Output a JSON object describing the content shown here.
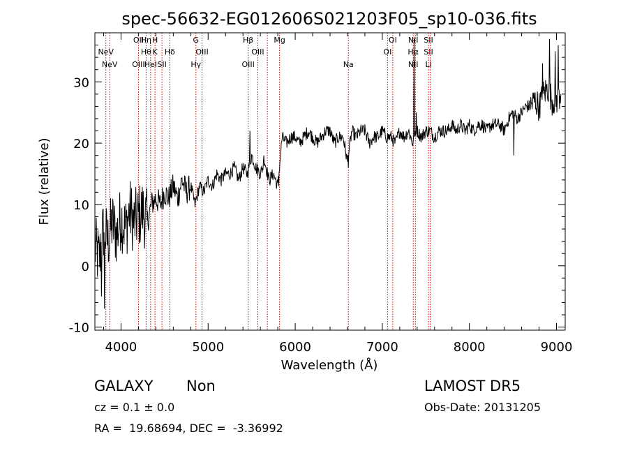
{
  "chart_data": {
    "type": "line",
    "title": "spec-56632-EG012606S021203F05_sp10-036.fits",
    "xlabel": "Wavelength (Å)",
    "ylabel": "Flux (relative)",
    "xlim": [
      3700,
      9100
    ],
    "ylim": [
      -10.5,
      38
    ],
    "x_ticks": [
      4000,
      5000,
      6000,
      7000,
      8000,
      9000
    ],
    "y_ticks": [
      -10,
      0,
      10,
      20,
      30
    ],
    "grid": false,
    "line_color": "#000000",
    "marker_color": "#cc0000",
    "series": [
      {
        "x": [
          3700,
          3750,
          3800,
          3850,
          3900,
          3950,
          4000,
          4050,
          4100,
          4150,
          4200,
          4250,
          4300,
          4350,
          4400,
          4450,
          4500,
          4550,
          4600,
          4650,
          4700,
          4750,
          4800,
          4850,
          4900,
          4950,
          5000,
          5050,
          5100,
          5150,
          5200,
          5250,
          5300,
          5350,
          5400,
          5450,
          5500,
          5550,
          5600,
          5650,
          5700,
          5750,
          5800,
          5850,
          5900,
          5950,
          6000,
          6050,
          6100,
          6150,
          6200,
          6250,
          6300,
          6350,
          6400,
          6450,
          6500,
          6550,
          6600,
          6650,
          6700,
          6750,
          6800,
          6850,
          6900,
          6950,
          7000,
          7050,
          7100,
          7150,
          7200,
          7250,
          7300,
          7350,
          7400,
          7450,
          7500,
          7550,
          7600,
          7650,
          7700,
          7750,
          7800,
          7850,
          7900,
          7950,
          8000,
          8050,
          8100,
          8150,
          8200,
          8250,
          8300,
          8350,
          8400,
          8450,
          8500,
          8550,
          8600,
          8650,
          8700,
          8750,
          8800,
          8850,
          8900,
          8950,
          9000,
          9050
        ],
        "y": [
          3,
          1,
          6,
          4,
          7,
          5,
          8,
          6,
          9,
          7,
          8,
          9,
          7,
          10,
          11,
          10,
          12,
          11,
          13,
          11,
          14,
          12,
          13,
          10,
          13,
          12,
          14,
          13,
          15,
          14,
          15,
          15,
          16,
          14,
          16,
          15,
          18,
          16,
          15,
          17,
          14,
          15,
          13,
          21,
          20,
          21,
          21,
          20,
          21,
          22,
          21,
          20,
          21,
          22,
          22,
          20,
          21,
          21,
          17,
          22,
          21,
          22,
          22,
          20,
          21,
          21,
          22,
          21,
          21,
          20,
          22,
          21,
          22,
          20,
          22,
          21,
          22,
          22,
          21,
          22,
          22,
          22,
          23,
          22,
          23,
          22,
          23,
          22,
          23,
          23,
          22,
          23,
          23,
          23,
          22,
          24,
          25,
          24,
          25,
          26,
          26,
          27,
          26,
          28,
          29,
          27,
          27,
          28
        ]
      }
    ],
    "spikes": [
      {
        "x": 3775,
        "y": -5
      },
      {
        "x": 3810,
        "y": -7
      },
      {
        "x": 5480,
        "y": 22
      },
      {
        "x": 5640,
        "y": 18
      },
      {
        "x": 5810,
        "y": 13
      },
      {
        "x": 6610,
        "y": 16
      },
      {
        "x": 7365,
        "y": 37
      },
      {
        "x": 7390,
        "y": 25
      },
      {
        "x": 8510,
        "y": 18
      },
      {
        "x": 8840,
        "y": 33
      },
      {
        "x": 8920,
        "y": 37
      },
      {
        "x": 8985,
        "y": 35
      },
      {
        "x": 9020,
        "y": 36
      }
    ],
    "line_markers": [
      {
        "x": 3826,
        "row1": "",
        "row2": "NeV",
        "row3": ""
      },
      {
        "x": 3870,
        "row1": "",
        "row2": "",
        "row3": "NeV"
      },
      {
        "x": 4200,
        "row1": "OII",
        "row2": "",
        "row3": "OIII"
      },
      {
        "x": 4288,
        "row1": "Hη",
        "row2": "Hθ",
        "row3": ""
      },
      {
        "x": 4340,
        "row1": "",
        "row2": "",
        "row3": "HeI"
      },
      {
        "x": 4390,
        "row1": "H",
        "row2": "K",
        "row3": ""
      },
      {
        "x": 4470,
        "row1": "",
        "row2": "",
        "row3": "SII"
      },
      {
        "x": 4560,
        "row1": "",
        "row2": "Hδ",
        "row3": ""
      },
      {
        "x": 4860,
        "row1": "G",
        "row2": "",
        "row3": "Hγ"
      },
      {
        "x": 4930,
        "row1": "",
        "row2": "OIII",
        "row3": ""
      },
      {
        "x": 5460,
        "row1": "Hβ",
        "row2": "",
        "row3": "OIII"
      },
      {
        "x": 5570,
        "row1": "",
        "row2": "OIII",
        "row3": ""
      },
      {
        "x": 5680,
        "row1": "",
        "row2": "",
        "row3": ""
      },
      {
        "x": 5820,
        "row1": "Mg",
        "row2": "",
        "row3": ""
      },
      {
        "x": 6610,
        "row1": "",
        "row2": "",
        "row3": "Na"
      },
      {
        "x": 7060,
        "row1": "",
        "row2": "OI",
        "row3": ""
      },
      {
        "x": 7120,
        "row1": "OI",
        "row2": "",
        "row3": ""
      },
      {
        "x": 7355,
        "row1": "NII",
        "row2": "Hα",
        "row3": "NII"
      },
      {
        "x": 7380,
        "row1": "",
        "row2": "",
        "row3": ""
      },
      {
        "x": 7530,
        "row1": "SII",
        "row2": "SII",
        "row3": "Li"
      },
      {
        "x": 7550,
        "row1": "",
        "row2": "",
        "row3": ""
      }
    ]
  },
  "info": {
    "class_label": "GALAXY",
    "subclass_label": "Non",
    "survey": "LAMOST DR5",
    "cz_text": "cz = 0.1 ± 0.0",
    "obs_date_text": "Obs-Date: 20131205",
    "radec_text": "RA =  19.68694, DEC =  -3.36992"
  }
}
